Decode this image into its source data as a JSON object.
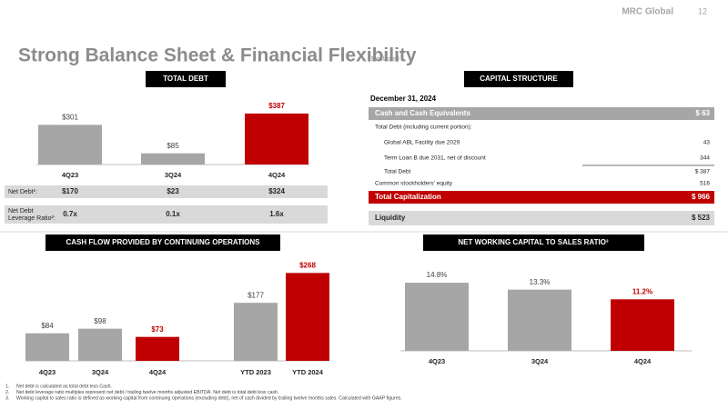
{
  "header": {
    "title": "Strong Balance Sheet & Financial Flexibility",
    "subtitle": "($ millions)",
    "logo": "MRC Global",
    "page": "12"
  },
  "chart_data": [
    {
      "type": "bar",
      "title": "TOTAL DEBT",
      "categories": [
        "4Q23",
        "3Q24",
        "4Q24"
      ],
      "values": [
        301,
        85,
        387
      ],
      "value_labels": [
        "$301",
        "$85",
        "$387"
      ],
      "colors": [
        "#a6a6a6",
        "#a6a6a6",
        "#c00000"
      ],
      "value_label_colors": [
        "#404040",
        "#404040",
        "#c00000"
      ],
      "ylim": [
        0,
        400
      ]
    },
    {
      "type": "bar",
      "title": "CASH FLOW PROVIDED BY CONTINUING OPERATIONS",
      "categories": [
        "4Q23",
        "3Q24",
        "4Q24",
        "YTD 2023",
        "YTD 2024"
      ],
      "values": [
        84,
        98,
        73,
        177,
        268
      ],
      "value_labels": [
        "$84",
        "$98",
        "$73",
        "$177",
        "$268"
      ],
      "colors": [
        "#a6a6a6",
        "#a6a6a6",
        "#c00000",
        "#a6a6a6",
        "#c00000"
      ],
      "value_label_colors": [
        "#404040",
        "#404040",
        "#c00000",
        "#404040",
        "#c00000"
      ],
      "ylim": [
        0,
        280
      ]
    },
    {
      "type": "bar",
      "title": "NET WORKING CAPITAL TO SALES RATIO³",
      "categories": [
        "4Q23",
        "3Q24",
        "4Q24"
      ],
      "values": [
        14.8,
        13.3,
        11.2
      ],
      "value_labels": [
        "14.8%",
        "13.3%",
        "11.2%"
      ],
      "colors": [
        "#a6a6a6",
        "#a6a6a6",
        "#c00000"
      ],
      "value_label_colors": [
        "#404040",
        "#404040",
        "#c00000"
      ],
      "ylim": [
        0,
        16
      ]
    }
  ],
  "debt_table": {
    "rows": [
      {
        "label": "Net Debt¹:",
        "cells": [
          "$170",
          "$23",
          "$324"
        ]
      },
      {
        "label": "Net Debt Leverage Ratio²:",
        "cells": [
          "0.7x",
          "0.1x",
          "1.6x"
        ]
      }
    ]
  },
  "capital_structure": {
    "title": "CAPITAL STRUCTURE",
    "date": "December 31, 2024",
    "rows": [
      {
        "label": "Cash and Cash Equivalents",
        "value": "$ 63",
        "style": "gray"
      },
      {
        "label": "Total Debt (including current portion):",
        "style": "plain"
      },
      {
        "label": "Global ABL Facility due 2029",
        "value": "43",
        "style": "indent"
      },
      {
        "label": "Term Loan B due 2031, net of discount",
        "value": "344",
        "style": "indent-underline"
      },
      {
        "label": "Total Debt",
        "value": "$ 387",
        "style": "indent"
      },
      {
        "label": "Common stockholders' equity",
        "value": "516",
        "style": "plain"
      },
      {
        "label": "Total Capitalization",
        "value": "$ 966",
        "style": "red"
      },
      {
        "label": "Liquidity",
        "value": "$ 523",
        "style": "liquidity"
      }
    ]
  },
  "footnotes": [
    {
      "number": "1.",
      "text": "Net debt is calculated as total debt less Cash."
    },
    {
      "number": "2.",
      "text": "Net debt leverage ratio multiples represent net debt / trailing twelve months adjusted EBITDA. Net debt is total debt less cash."
    },
    {
      "number": "3.",
      "text": "Working capital to sales ratio is defined as working capital from continuing operations (excluding debt), net of cash divided by trailing twelve months sales. Calculated with GAAP figures."
    }
  ]
}
